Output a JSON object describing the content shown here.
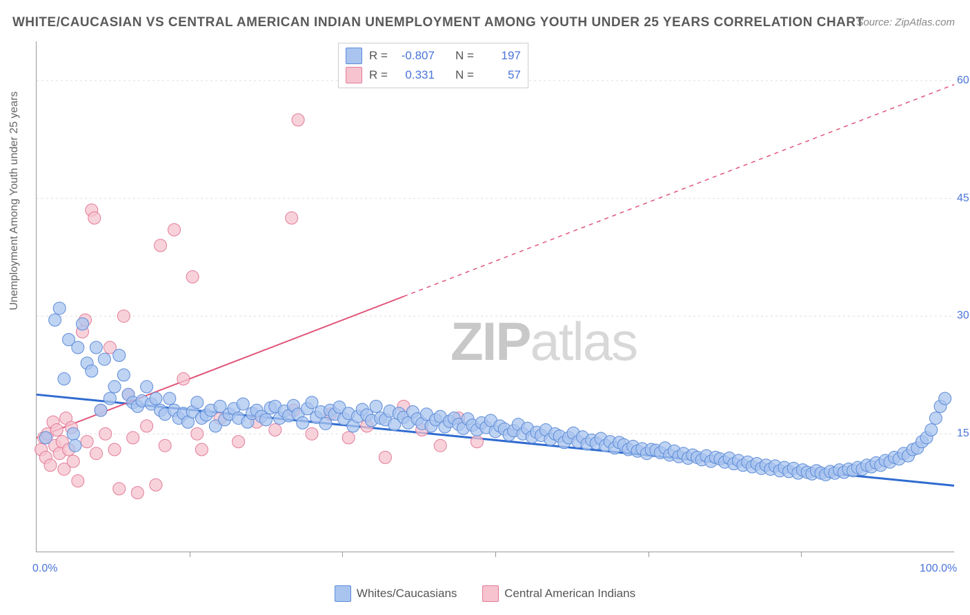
{
  "title": "WHITE/CAUCASIAN VS CENTRAL AMERICAN INDIAN UNEMPLOYMENT AMONG YOUTH UNDER 25 YEARS CORRELATION CHART",
  "source": "Source: ZipAtlas.com",
  "ylabel": "Unemployment Among Youth under 25 years",
  "watermark_a": "ZIP",
  "watermark_b": "atlas",
  "chart": {
    "type": "scatter-with-regression",
    "background_color": "#ffffff",
    "grid_color": "#dddddd",
    "axis_color": "#999999",
    "tick_color": "#4a74d8",
    "xlim": [
      0,
      100
    ],
    "ylim": [
      0,
      65
    ],
    "xticks": [
      0,
      100
    ],
    "xticks_minor": [
      16.7,
      33.3,
      50,
      66.7,
      83.3
    ],
    "xtick_labels": [
      "0.0%",
      "100.0%"
    ],
    "yticks": [
      15,
      30,
      45,
      60
    ],
    "ytick_labels": [
      "15.0%",
      "30.0%",
      "45.0%",
      "60.0%"
    ],
    "series": [
      {
        "name": "Whites/Caucasians",
        "color_fill": "#a9c4ef",
        "color_stroke": "#5b8bd8",
        "marker_radius": 9,
        "marker_opacity": 0.75,
        "regression": {
          "slope": -0.116,
          "intercept": 20.0,
          "color": "#2f6bd0",
          "width": 3,
          "dash_after_x": null
        },
        "stats": {
          "R": "-0.807",
          "N": "197"
        }
      },
      {
        "name": "Central American Indians",
        "color_fill": "#f6c3cf",
        "color_stroke": "#e27a98",
        "marker_radius": 9,
        "marker_opacity": 0.75,
        "regression": {
          "slope": 0.45,
          "intercept": 14.5,
          "color": "#e05578",
          "width": 2,
          "dash_after_x": 40
        },
        "stats": {
          "R": "0.331",
          "N": "57"
        }
      }
    ],
    "legend_top_labels": {
      "R": "R =",
      "N": "N ="
    },
    "data_blue": [
      [
        1,
        14.5
      ],
      [
        2,
        29.5
      ],
      [
        2.5,
        31
      ],
      [
        3,
        22
      ],
      [
        3.5,
        27
      ],
      [
        4,
        15
      ],
      [
        4.2,
        13.5
      ],
      [
        4.5,
        26
      ],
      [
        5,
        29
      ],
      [
        5.5,
        24
      ],
      [
        6,
        23
      ],
      [
        6.5,
        26
      ],
      [
        7,
        18
      ],
      [
        7.4,
        24.5
      ],
      [
        8,
        19.5
      ],
      [
        8.5,
        21
      ],
      [
        9,
        25
      ],
      [
        9.5,
        22.5
      ],
      [
        10,
        20
      ],
      [
        10.5,
        19
      ],
      [
        11,
        18.5
      ],
      [
        11.5,
        19.2
      ],
      [
        12,
        21
      ],
      [
        12.5,
        18.8
      ],
      [
        13,
        19.5
      ],
      [
        13.5,
        18
      ],
      [
        14,
        17.5
      ],
      [
        14.5,
        19.5
      ],
      [
        15,
        18
      ],
      [
        15.5,
        17
      ],
      [
        16,
        17.6
      ],
      [
        16.5,
        16.5
      ],
      [
        17,
        17.8
      ],
      [
        17.5,
        19
      ],
      [
        18,
        17
      ],
      [
        18.5,
        17.4
      ],
      [
        19,
        18
      ],
      [
        19.5,
        16
      ],
      [
        20,
        18.5
      ],
      [
        20.5,
        16.8
      ],
      [
        21,
        17.5
      ],
      [
        21.5,
        18.2
      ],
      [
        22,
        17
      ],
      [
        22.5,
        18.8
      ],
      [
        23,
        16.5
      ],
      [
        23.5,
        17.6
      ],
      [
        24,
        18
      ],
      [
        24.5,
        17.2
      ],
      [
        25,
        16.8
      ],
      [
        25.5,
        18.3
      ],
      [
        26,
        18.5
      ],
      [
        26.5,
        17
      ],
      [
        27,
        17.9
      ],
      [
        27.5,
        17.3
      ],
      [
        28,
        18.6
      ],
      [
        28.5,
        17.5
      ],
      [
        29,
        16.4
      ],
      [
        29.5,
        18.2
      ],
      [
        30,
        19
      ],
      [
        30.5,
        17.1
      ],
      [
        31,
        17.8
      ],
      [
        31.5,
        16.3
      ],
      [
        32,
        18
      ],
      [
        32.5,
        17.5
      ],
      [
        33,
        18.4
      ],
      [
        33.5,
        16.9
      ],
      [
        34,
        17.6
      ],
      [
        34.5,
        16
      ],
      [
        35,
        17.2
      ],
      [
        35.5,
        18.1
      ],
      [
        36,
        17.4
      ],
      [
        36.5,
        16.7
      ],
      [
        37,
        18.5
      ],
      [
        37.5,
        17
      ],
      [
        38,
        16.8
      ],
      [
        38.5,
        17.9
      ],
      [
        39,
        16.2
      ],
      [
        39.5,
        17.6
      ],
      [
        40,
        17.1
      ],
      [
        40.5,
        16.4
      ],
      [
        41,
        17.8
      ],
      [
        41.5,
        16.9
      ],
      [
        42,
        16.3
      ],
      [
        42.5,
        17.5
      ],
      [
        43,
        16
      ],
      [
        43.5,
        16.8
      ],
      [
        44,
        17.2
      ],
      [
        44.5,
        15.9
      ],
      [
        45,
        16.6
      ],
      [
        45.5,
        17
      ],
      [
        46,
        16.2
      ],
      [
        46.5,
        15.7
      ],
      [
        47,
        16.9
      ],
      [
        47.5,
        16.1
      ],
      [
        48,
        15.5
      ],
      [
        48.5,
        16.4
      ],
      [
        49,
        15.8
      ],
      [
        49.5,
        16.7
      ],
      [
        50,
        15.3
      ],
      [
        50.5,
        16
      ],
      [
        51,
        15.6
      ],
      [
        51.5,
        14.9
      ],
      [
        52,
        15.4
      ],
      [
        52.5,
        16.2
      ],
      [
        53,
        15
      ],
      [
        53.5,
        15.7
      ],
      [
        54,
        14.6
      ],
      [
        54.5,
        15.2
      ],
      [
        55,
        14.8
      ],
      [
        55.5,
        15.5
      ],
      [
        56,
        14.3
      ],
      [
        56.5,
        15
      ],
      [
        57,
        14.7
      ],
      [
        57.5,
        13.9
      ],
      [
        58,
        14.5
      ],
      [
        58.5,
        15.1
      ],
      [
        59,
        14
      ],
      [
        59.5,
        14.6
      ],
      [
        60,
        13.7
      ],
      [
        60.5,
        14.2
      ],
      [
        61,
        13.8
      ],
      [
        61.5,
        14.4
      ],
      [
        62,
        13.5
      ],
      [
        62.5,
        14
      ],
      [
        63,
        13.2
      ],
      [
        63.5,
        13.9
      ],
      [
        64,
        13.6
      ],
      [
        64.5,
        13
      ],
      [
        65,
        13.4
      ],
      [
        65.5,
        12.8
      ],
      [
        66,
        13.1
      ],
      [
        66.5,
        12.5
      ],
      [
        67,
        13
      ],
      [
        67.5,
        12.9
      ],
      [
        68,
        12.6
      ],
      [
        68.5,
        13.2
      ],
      [
        69,
        12.3
      ],
      [
        69.5,
        12.8
      ],
      [
        70,
        12.1
      ],
      [
        70.5,
        12.5
      ],
      [
        71,
        11.9
      ],
      [
        71.5,
        12.3
      ],
      [
        72,
        12
      ],
      [
        72.5,
        11.7
      ],
      [
        73,
        12.2
      ],
      [
        73.5,
        11.5
      ],
      [
        74,
        12
      ],
      [
        74.5,
        11.8
      ],
      [
        75,
        11.4
      ],
      [
        75.5,
        11.9
      ],
      [
        76,
        11.2
      ],
      [
        76.5,
        11.6
      ],
      [
        77,
        11
      ],
      [
        77.5,
        11.4
      ],
      [
        78,
        10.8
      ],
      [
        78.5,
        11.2
      ],
      [
        79,
        10.6
      ],
      [
        79.5,
        11
      ],
      [
        80,
        10.5
      ],
      [
        80.5,
        10.9
      ],
      [
        81,
        10.3
      ],
      [
        81.5,
        10.7
      ],
      [
        82,
        10.2
      ],
      [
        82.5,
        10.6
      ],
      [
        83,
        10
      ],
      [
        83.5,
        10.4
      ],
      [
        84,
        10.1
      ],
      [
        84.5,
        9.9
      ],
      [
        85,
        10.3
      ],
      [
        85.5,
        10
      ],
      [
        86,
        9.8
      ],
      [
        86.5,
        10.2
      ],
      [
        87,
        10
      ],
      [
        87.5,
        10.4
      ],
      [
        88,
        10.1
      ],
      [
        88.5,
        10.5
      ],
      [
        89,
        10.3
      ],
      [
        89.5,
        10.7
      ],
      [
        90,
        10.5
      ],
      [
        90.5,
        11
      ],
      [
        91,
        10.8
      ],
      [
        91.5,
        11.3
      ],
      [
        92,
        11
      ],
      [
        92.5,
        11.6
      ],
      [
        93,
        11.4
      ],
      [
        93.5,
        12
      ],
      [
        94,
        11.8
      ],
      [
        94.5,
        12.5
      ],
      [
        95,
        12.2
      ],
      [
        95.5,
        13
      ],
      [
        96,
        13.2
      ],
      [
        96.5,
        14
      ],
      [
        97,
        14.5
      ],
      [
        97.5,
        15.5
      ],
      [
        98,
        17
      ],
      [
        98.5,
        18.5
      ],
      [
        99,
        19.5
      ]
    ],
    "data_pink": [
      [
        0.5,
        13
      ],
      [
        0.8,
        14.5
      ],
      [
        1,
        12
      ],
      [
        1.2,
        15
      ],
      [
        1.5,
        11
      ],
      [
        1.8,
        16.5
      ],
      [
        2,
        13.5
      ],
      [
        2.2,
        15.5
      ],
      [
        2.5,
        12.5
      ],
      [
        2.8,
        14
      ],
      [
        3,
        10.5
      ],
      [
        3.2,
        17
      ],
      [
        3.5,
        13
      ],
      [
        3.8,
        15.8
      ],
      [
        4,
        11.5
      ],
      [
        4.5,
        9
      ],
      [
        5,
        28
      ],
      [
        5.3,
        29.5
      ],
      [
        5.5,
        14
      ],
      [
        6,
        43.5
      ],
      [
        6.3,
        42.5
      ],
      [
        6.5,
        12.5
      ],
      [
        7,
        18
      ],
      [
        7.5,
        15
      ],
      [
        8,
        26
      ],
      [
        8.5,
        13
      ],
      [
        9,
        8
      ],
      [
        9.5,
        30
      ],
      [
        10,
        20
      ],
      [
        10.5,
        14.5
      ],
      [
        11,
        7.5
      ],
      [
        12,
        16
      ],
      [
        13,
        8.5
      ],
      [
        13.5,
        39
      ],
      [
        14,
        13.5
      ],
      [
        15,
        41
      ],
      [
        16,
        22
      ],
      [
        17,
        35
      ],
      [
        17.5,
        15
      ],
      [
        18,
        13
      ],
      [
        20,
        17
      ],
      [
        22,
        14
      ],
      [
        24,
        16.5
      ],
      [
        26,
        15.5
      ],
      [
        27.8,
        42.5
      ],
      [
        28,
        18
      ],
      [
        28.5,
        55
      ],
      [
        30,
        15
      ],
      [
        32,
        17.5
      ],
      [
        34,
        14.5
      ],
      [
        36,
        16
      ],
      [
        38,
        12
      ],
      [
        40,
        18.5
      ],
      [
        42,
        15.5
      ],
      [
        44,
        13.5
      ],
      [
        46,
        17
      ],
      [
        48,
        14
      ]
    ]
  }
}
